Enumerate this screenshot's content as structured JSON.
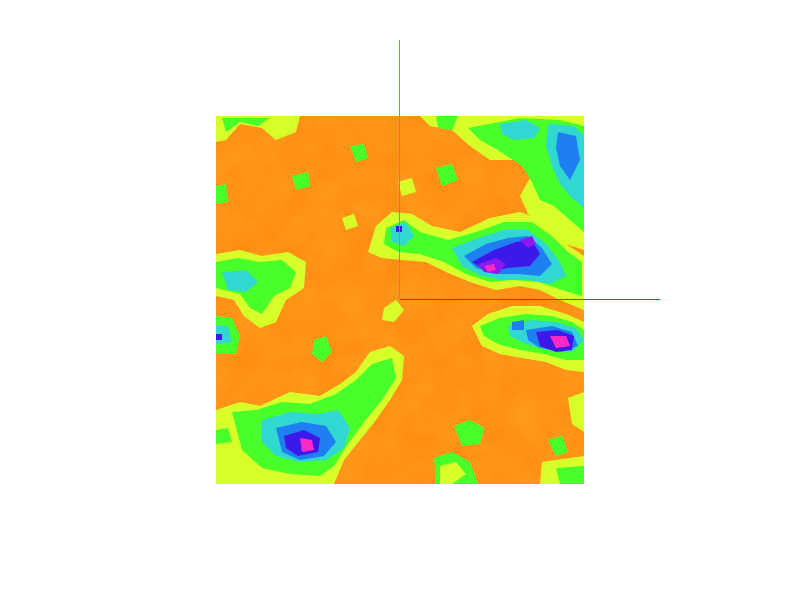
{
  "scene": {
    "background_color": "#ffffff",
    "heightmap": {
      "description": "",
      "palette": {
        "base": "#ff8a10",
        "base_light": "#ff9a1e",
        "yellow_green": "#d7ff2a",
        "green": "#49ff2a",
        "cyan": "#31d7d1",
        "blue": "#1e7ff3",
        "dark_blue": "#3c19e8",
        "violet": "#8a18f0",
        "magenta": "#ff29c8"
      }
    },
    "axes": {
      "x_axis_color": "#e0202a",
      "y_axis_color": "#3ec83e"
    }
  }
}
